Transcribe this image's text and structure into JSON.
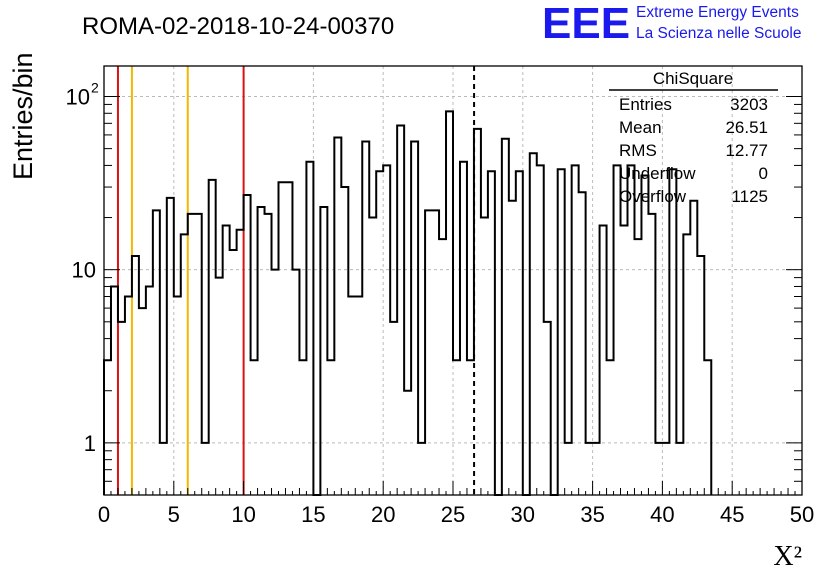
{
  "chart_data": {
    "type": "bar",
    "style": "step-histogram",
    "title": "ROMA-02-2018-10-24-00370",
    "xlabel": "X²",
    "ylabel": "Entries/bin",
    "xlim": [
      0,
      50
    ],
    "ylim": [
      0.5,
      150
    ],
    "yscale": "log",
    "grid": true,
    "bin_width": 0.5,
    "x_ticks": [
      "0",
      "5",
      "10",
      "15",
      "20",
      "25",
      "30",
      "35",
      "40",
      "45",
      "50"
    ],
    "y_ticks": [
      {
        "value": 1,
        "label": "1"
      },
      {
        "value": 10,
        "label": "10"
      },
      {
        "value": 100,
        "label": "10",
        "exp": "2"
      }
    ],
    "values": [
      3,
      8,
      5,
      7,
      12,
      6,
      8,
      22,
      1,
      26,
      7,
      16,
      21,
      21,
      1,
      33,
      9,
      18,
      13,
      17,
      27,
      3,
      23,
      21,
      10,
      32,
      32,
      10,
      3,
      42,
      0.3,
      23,
      3,
      58,
      30,
      7,
      7,
      55,
      20,
      37,
      40,
      5,
      68,
      2,
      55,
      1,
      22,
      22,
      15,
      82,
      3,
      42,
      3,
      65,
      20,
      37,
      0.3,
      57,
      25,
      37,
      0.3,
      47,
      40,
      5,
      0.3,
      38,
      1,
      40,
      28,
      1,
      1,
      18,
      3,
      40,
      18,
      40,
      15,
      35,
      21,
      1,
      1,
      38,
      1,
      16,
      25,
      12,
      3
    ],
    "vertical_lines": [
      {
        "x": 1,
        "color": "#dd1111",
        "style": "solid"
      },
      {
        "x": 2,
        "color": "#f2b800",
        "style": "solid"
      },
      {
        "x": 6,
        "color": "#f2b800",
        "style": "solid"
      },
      {
        "x": 10,
        "color": "#dd1111",
        "style": "solid"
      },
      {
        "x": 26.51,
        "color": "#000000",
        "style": "dashed"
      }
    ],
    "stats_box": {
      "title": "ChiSquare",
      "rows": [
        {
          "label": "Entries",
          "value": "3203"
        },
        {
          "label": "Mean",
          "value": "26.51"
        },
        {
          "label": "RMS",
          "value": "12.77"
        },
        {
          "label": "Underflow",
          "value": "0"
        },
        {
          "label": "Overflow",
          "value": "1125"
        }
      ]
    },
    "logo": {
      "mark": "EEE",
      "line1": "Extreme Energy Events",
      "line2": "La Scienza nelle Scuole",
      "color": "#1a1aee"
    }
  }
}
